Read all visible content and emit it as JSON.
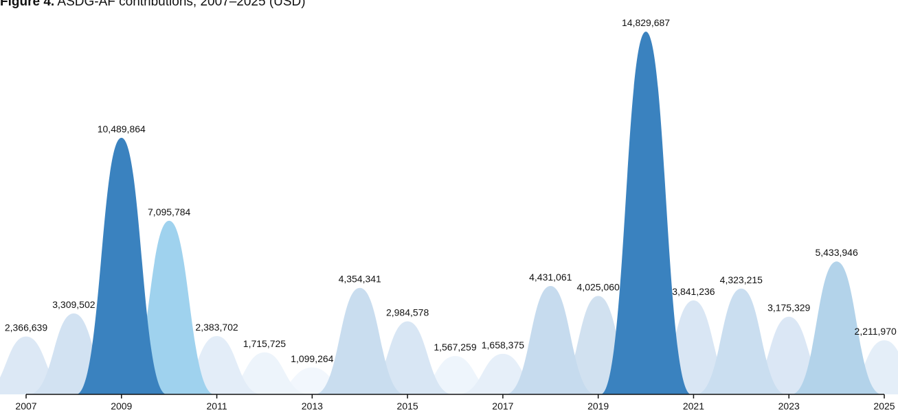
{
  "title": {
    "prefix": "Figure 4.",
    "text": "ASDG-AF contributions, 2007–2025 (USD)"
  },
  "chart_data": {
    "type": "area",
    "x": [
      2007,
      2008,
      2009,
      2010,
      2011,
      2012,
      2013,
      2014,
      2015,
      2016,
      2017,
      2018,
      2019,
      2020,
      2021,
      2022,
      2023,
      2024,
      2025
    ],
    "values": [
      2366639,
      3309502,
      10489864,
      7095784,
      2383702,
      1715725,
      1099264,
      4354341,
      2984578,
      1567259,
      1658375,
      4431061,
      4025060,
      14829687,
      3841236,
      4323215,
      3175329,
      5433946,
      2211970
    ],
    "labels": [
      "2,366,639",
      "3,309,502",
      "10,489,864",
      "7,095,784",
      "2,383,702",
      "1,715,725",
      "1,099,264",
      "4,354,341",
      "2,984,578",
      "1,567,259",
      "1,658,375",
      "4,431,061",
      "4,025,060",
      "14,829,687",
      "3,841,236",
      "4,323,215",
      "3,175,329",
      "5,433,946",
      "2,211,970"
    ],
    "xticks": [
      "2007",
      "2009",
      "2011",
      "2013",
      "2015",
      "2017",
      "2019",
      "2021",
      "2023",
      "2025"
    ],
    "xlim": [
      2007,
      2025
    ],
    "ylim": [
      0,
      15000000
    ],
    "colors": [
      "#dce8f5",
      "#d2e2f2",
      "#3a82bf",
      "#9fd2ee",
      "#e3edf8",
      "#edf4fb",
      "#f2f7fd",
      "#c9ddef",
      "#d8e6f4",
      "#eef5fc",
      "#e6eff9",
      "#c6dbee",
      "#d1e1f0",
      "#3a82bf",
      "#d9e6f4",
      "#cadef0",
      "#dbe7f5",
      "#b3d3ea",
      "#e4eef8"
    ],
    "grid": false,
    "legend": "none"
  }
}
